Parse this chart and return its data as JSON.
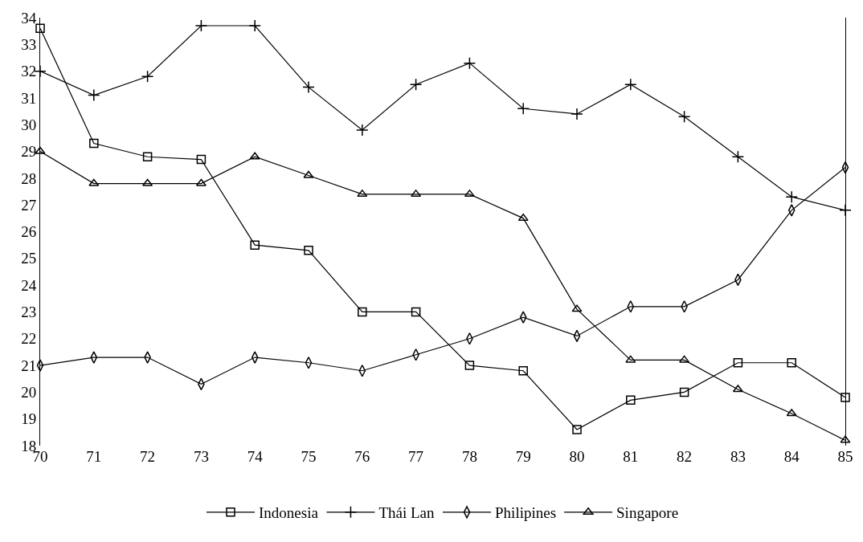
{
  "chart_data": {
    "type": "line",
    "x": [
      70,
      71,
      72,
      73,
      74,
      75,
      76,
      77,
      78,
      79,
      80,
      81,
      82,
      83,
      84,
      85
    ],
    "xlim": [
      70,
      85
    ],
    "xticks": [
      70,
      71,
      72,
      73,
      74,
      75,
      76,
      77,
      78,
      79,
      80,
      81,
      82,
      83,
      84,
      85
    ],
    "ylim": [
      18,
      34
    ],
    "yticks": [
      18,
      19,
      20,
      21,
      22,
      23,
      24,
      25,
      26,
      27,
      28,
      29,
      30,
      31,
      32,
      33,
      34
    ],
    "grid": false,
    "legend": "bottom",
    "series": [
      {
        "name": "Indonesia",
        "color": "#000000",
        "marker": "square",
        "values": [
          33.6,
          29.3,
          28.8,
          28.7,
          25.5,
          25.3,
          23.0,
          23.0,
          21.0,
          20.8,
          18.6,
          19.7,
          20.0,
          21.1,
          21.1,
          19.8
        ]
      },
      {
        "name": "Thái Lan",
        "color": "#000000",
        "marker": "cross",
        "values": [
          32.0,
          31.1,
          31.8,
          33.7,
          33.7,
          31.4,
          29.8,
          31.5,
          32.3,
          30.6,
          30.4,
          31.5,
          30.3,
          28.8,
          27.3,
          26.8
        ]
      },
      {
        "name": "Philipines",
        "color": "#000000",
        "marker": "diamond",
        "values": [
          21.0,
          21.3,
          21.3,
          20.3,
          21.3,
          21.1,
          20.8,
          21.4,
          22.0,
          22.8,
          22.1,
          23.2,
          23.2,
          24.2,
          26.8,
          28.4
        ]
      },
      {
        "name": "Singapore",
        "color": "#000000",
        "marker": "triangle",
        "values": [
          29.0,
          27.8,
          27.8,
          27.8,
          28.8,
          28.1,
          27.4,
          27.4,
          27.4,
          26.5,
          23.1,
          21.2,
          21.2,
          20.1,
          19.2,
          18.2
        ]
      }
    ]
  }
}
